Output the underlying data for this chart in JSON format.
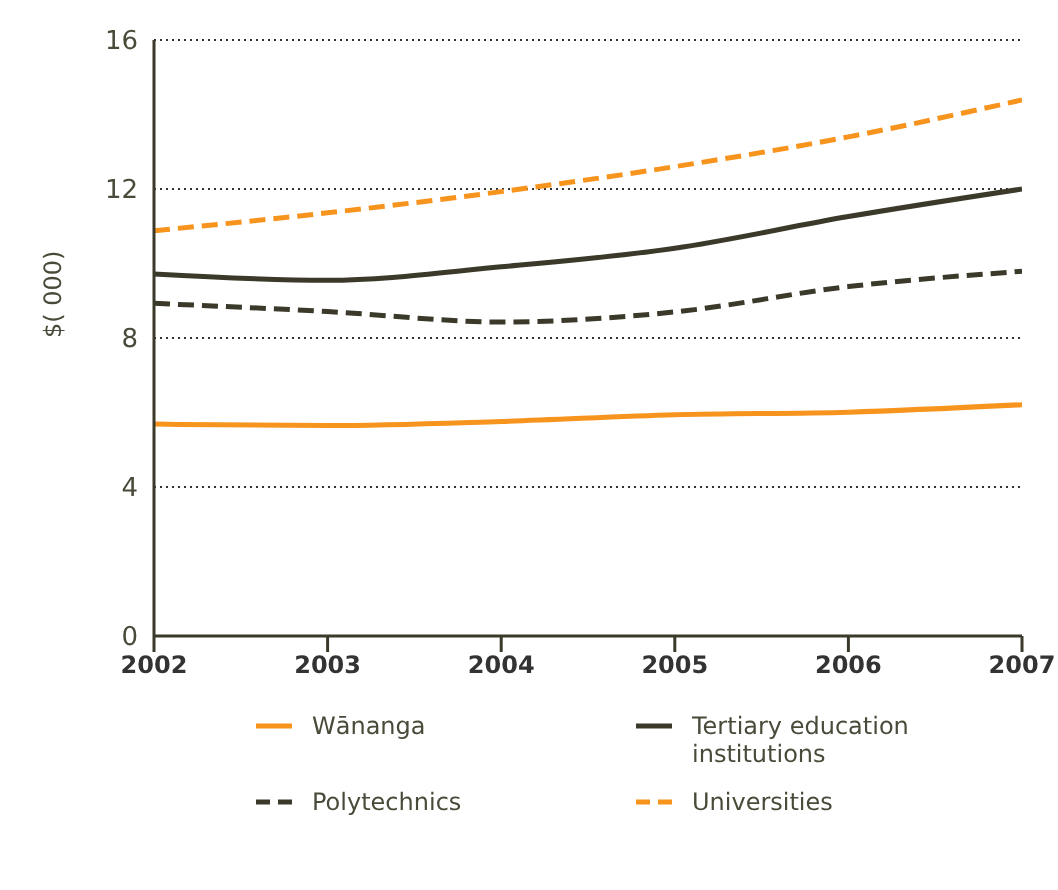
{
  "chart_data": {
    "type": "line",
    "ylabel": "$( 000)",
    "x": [
      2002,
      2003,
      2004,
      2005,
      2006,
      2007
    ],
    "xlim": [
      2002,
      2007
    ],
    "xticks": [
      2002,
      2003,
      2004,
      2005,
      2006,
      2007
    ],
    "ylim": [
      0,
      16
    ],
    "yticks": [
      0,
      4,
      8,
      12,
      16
    ],
    "grid": "y",
    "legend": "bottom",
    "marker": "none",
    "series": [
      {
        "name": "Wānanga",
        "color": "#f7941d",
        "line_style": "solid",
        "values": [
          5.69,
          5.65,
          5.76,
          5.94,
          6.01,
          6.21
        ]
      },
      {
        "name": "Polytechnics",
        "color": "#3b3a2a",
        "line_style": "dashed",
        "values": [
          8.93,
          8.71,
          8.43,
          8.7,
          9.38,
          9.79
        ]
      },
      {
        "name": "Tertiary education institutions",
        "color": "#3b3a2a",
        "line_style": "solid",
        "values": [
          9.72,
          9.55,
          9.91,
          10.41,
          11.26,
          12.0
        ]
      },
      {
        "name": "Universities",
        "color": "#f7941d",
        "line_style": "dashed",
        "values": [
          10.88,
          11.36,
          11.93,
          12.6,
          13.4,
          14.39
        ]
      }
    ]
  }
}
